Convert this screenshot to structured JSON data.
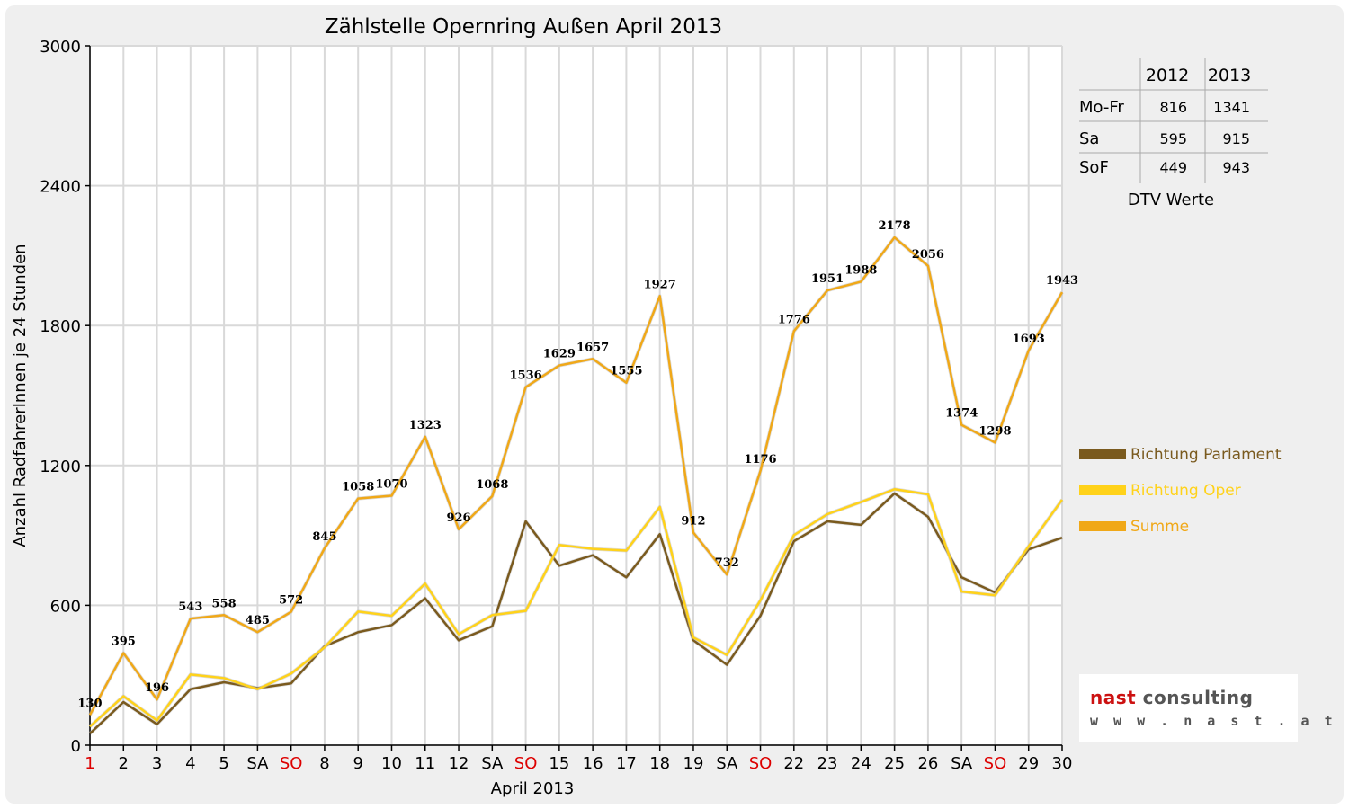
{
  "chart_data": {
    "type": "line",
    "title": "Zählstelle Opernring Außen April 2013",
    "xlabel": "April 2013",
    "ylabel": "Anzahl RadfahrerInnen je 24 Stunden",
    "ylim": [
      0,
      3000
    ],
    "yticks": [
      "0",
      "600",
      "1200",
      "1800",
      "2400",
      "3000"
    ],
    "categories": [
      "1",
      "2",
      "3",
      "4",
      "5",
      "SA",
      "SO",
      "8",
      "9",
      "10",
      "11",
      "12",
      "SA",
      "SO",
      "15",
      "16",
      "17",
      "18",
      "19",
      "SA",
      "SO",
      "22",
      "23",
      "24",
      "25",
      "26",
      "SA",
      "SO",
      "29",
      "30"
    ],
    "category_colors": [
      "#dd0000",
      "#000000",
      "#000000",
      "#000000",
      "#000000",
      "#000000",
      "#dd0000",
      "#000000",
      "#000000",
      "#000000",
      "#000000",
      "#000000",
      "#000000",
      "#dd0000",
      "#000000",
      "#000000",
      "#000000",
      "#000000",
      "#000000",
      "#000000",
      "#dd0000",
      "#000000",
      "#000000",
      "#000000",
      "#000000",
      "#000000",
      "#000000",
      "#dd0000",
      "#000000",
      "#000000"
    ],
    "series": [
      {
        "name": "Richtung Parlament",
        "color": "#7a5a1e",
        "values": [
          50,
          185,
          90,
          240,
          270,
          245,
          265,
          425,
          485,
          515,
          630,
          450,
          510,
          960,
          770,
          815,
          720,
          905,
          450,
          345,
          555,
          875,
          960,
          945,
          1080,
          980,
          720,
          655,
          840,
          890
        ]
      },
      {
        "name": "Richtung Oper",
        "color": "#ffd21a",
        "values": [
          80,
          210,
          106,
          303,
          288,
          240,
          307,
          420,
          573,
          555,
          693,
          476,
          558,
          576,
          859,
          842,
          835,
          1022,
          462,
          387,
          621,
          901,
          991,
          1043,
          1098,
          1076,
          659,
          643,
          853,
          1053
        ]
      },
      {
        "name": "Summe",
        "color": "#f0a818",
        "values": [
          130,
          395,
          196,
          543,
          558,
          485,
          572,
          845,
          1058,
          1070,
          1323,
          926,
          1068,
          1536,
          1629,
          1657,
          1555,
          1927,
          912,
          732,
          1176,
          1776,
          1951,
          1988,
          2178,
          2056,
          1374,
          1298,
          1693,
          1943
        ]
      }
    ],
    "data_labels": [
      "130",
      "395",
      "196",
      "543",
      "558",
      "485",
      "572",
      "845",
      "1058",
      "1070",
      "1323",
      "926",
      "1068",
      "1536",
      "1629",
      "1657",
      "1555",
      "1927",
      "912",
      "732",
      "1176",
      "1776",
      "1951",
      "1988",
      "2178",
      "2056",
      "1374",
      "1298",
      "1693",
      "1943"
    ],
    "grid": true,
    "legend_position": "right"
  },
  "dtv_table": {
    "headers": [
      "",
      "2012",
      "2013"
    ],
    "rows": [
      [
        "Mo-Fr",
        "816",
        "1341"
      ],
      [
        "Sa",
        "595",
        "915"
      ],
      [
        "SoF",
        "449",
        "943"
      ]
    ],
    "caption": "DTV Werte"
  },
  "logo": {
    "brand_a": "nast",
    "brand_b": " consulting",
    "url": "w w w . n a s t . a t"
  }
}
